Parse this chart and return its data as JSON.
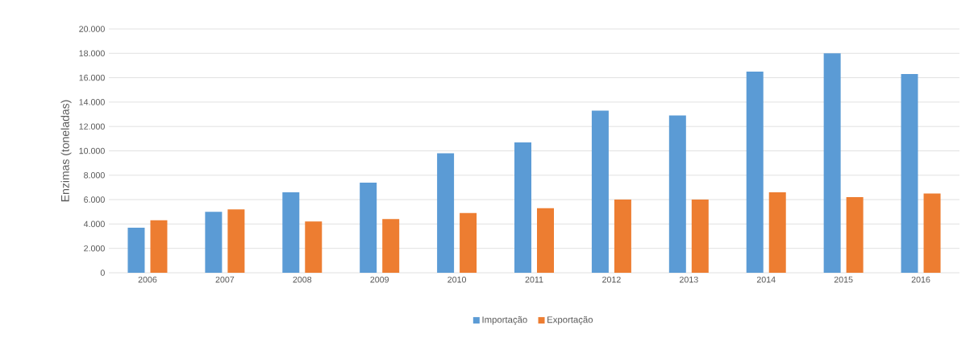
{
  "chart_data": {
    "type": "bar",
    "ylabel": "Enzimas (toneladas)",
    "categories": [
      "2006",
      "2007",
      "2008",
      "2009",
      "2010",
      "2011",
      "2012",
      "2013",
      "2014",
      "2015",
      "2016"
    ],
    "series": [
      {
        "name": "Importação",
        "color": "#5b9bd5",
        "values": [
          3700,
          5000,
          6600,
          7400,
          9800,
          10700,
          13300,
          12900,
          16500,
          18000,
          16300
        ]
      },
      {
        "name": "Exportação",
        "color": "#ed7d31",
        "values": [
          4300,
          5200,
          4200,
          4400,
          4900,
          5300,
          6000,
          6000,
          6600,
          6200,
          6500
        ]
      }
    ],
    "ylim": [
      0,
      20000
    ],
    "yticks": [
      0,
      {
        "value": 2000,
        "label": "2.000"
      },
      {
        "value": 4000,
        "label": "4.000"
      },
      {
        "value": 6000,
        "label": "6.000"
      },
      {
        "value": 8000,
        "label": "8.000"
      },
      {
        "value": 10000,
        "label": "10.000"
      },
      {
        "value": 12000,
        "label": "12.000"
      },
      {
        "value": 14000,
        "label": "14.000"
      },
      {
        "value": 16000,
        "label": "16.000"
      },
      {
        "value": 18000,
        "label": "18.000"
      },
      {
        "value": 20000,
        "label": "20.000"
      }
    ],
    "grid": "y",
    "legend": "bottom"
  }
}
